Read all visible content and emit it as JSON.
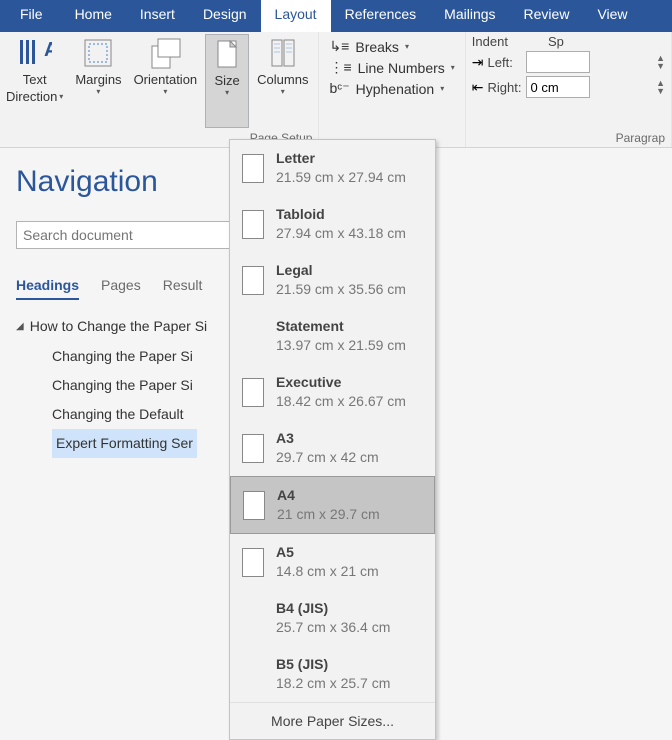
{
  "tabs": {
    "file": "File",
    "home": "Home",
    "insert": "Insert",
    "design": "Design",
    "layout": "Layout",
    "references": "References",
    "mailings": "Mailings",
    "review": "Review",
    "view": "View"
  },
  "ribbon": {
    "pageSetup": {
      "label": "Page Setup",
      "textDirection": "Text",
      "textDirection2": "Direction",
      "margins": "Margins",
      "orientation": "Orientation",
      "size": "Size",
      "columns": "Columns",
      "breaks": "Breaks",
      "lineNumbers": "Line Numbers",
      "hyphenation": "Hyphenation"
    },
    "paragraph": {
      "label": "Paragrap",
      "indent": "Indent",
      "left": "Left:",
      "right": "Right:",
      "leftVal": "",
      "rightVal": "0 cm",
      "spacingHeader": "Sp"
    }
  },
  "nav": {
    "title": "Navigation",
    "searchPlaceholder": "Search document",
    "tabs": {
      "headings": "Headings",
      "pages": "Pages",
      "results": "Result"
    },
    "tree": {
      "parent": "How to Change the Paper Si",
      "children": [
        "Changing the Paper Si",
        "Changing the Paper Si",
        "Changing the Default",
        "Expert Formatting Ser"
      ]
    }
  },
  "sizeMenu": {
    "items": [
      {
        "name": "Letter",
        "dim": "21.59 cm x 27.94 cm",
        "icon": true,
        "selected": false
      },
      {
        "name": "Tabloid",
        "dim": "27.94 cm x 43.18 cm",
        "icon": true,
        "selected": false
      },
      {
        "name": "Legal",
        "dim": "21.59 cm x 35.56 cm",
        "icon": true,
        "selected": false
      },
      {
        "name": "Statement",
        "dim": "13.97 cm x 21.59 cm",
        "icon": false,
        "selected": false
      },
      {
        "name": "Executive",
        "dim": "18.42 cm x 26.67 cm",
        "icon": true,
        "selected": false
      },
      {
        "name": "A3",
        "dim": "29.7 cm x 42 cm",
        "icon": true,
        "selected": false
      },
      {
        "name": "A4",
        "dim": "21 cm x 29.7 cm",
        "icon": true,
        "selected": true
      },
      {
        "name": "A5",
        "dim": "14.8 cm x 21 cm",
        "icon": true,
        "selected": false
      },
      {
        "name": "B4 (JIS)",
        "dim": "25.7 cm x 36.4 cm",
        "icon": false,
        "selected": false
      },
      {
        "name": "B5 (JIS)",
        "dim": "18.2 cm x 25.7 cm",
        "icon": false,
        "selected": false
      }
    ],
    "more": "More Paper Sizes..."
  },
  "colors": {
    "brand": "#2b579a",
    "ribbon": "#f2f2f2"
  }
}
